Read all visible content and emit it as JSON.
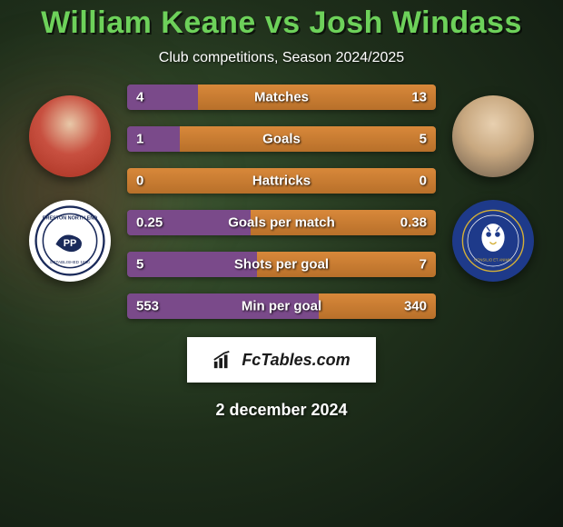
{
  "title": {
    "text": "William Keane vs Josh Windass",
    "color": "#6dd15a"
  },
  "subtitle": "Club competitions, Season 2024/2025",
  "colors": {
    "left_bar": "#7a4a8a",
    "right_bar": "#d8883a",
    "bar_border": "#b08040"
  },
  "stats": [
    {
      "label": "Matches",
      "left_val": "4",
      "right_val": "13",
      "left_pct": 23,
      "right_pct": 77
    },
    {
      "label": "Goals",
      "left_val": "1",
      "right_val": "5",
      "left_pct": 17,
      "right_pct": 83
    },
    {
      "label": "Hattricks",
      "left_val": "0",
      "right_val": "0",
      "left_pct": 0,
      "right_pct": 100
    },
    {
      "label": "Goals per match",
      "left_val": "0.25",
      "right_val": "0.38",
      "left_pct": 40,
      "right_pct": 60
    },
    {
      "label": "Shots per goal",
      "left_val": "5",
      "right_val": "7",
      "left_pct": 42,
      "right_pct": 58
    },
    {
      "label": "Min per goal",
      "left_val": "553",
      "right_val": "340",
      "left_pct": 62,
      "right_pct": 38
    }
  ],
  "branding": {
    "site": "FcTables.com"
  },
  "date": "2 december 2024"
}
